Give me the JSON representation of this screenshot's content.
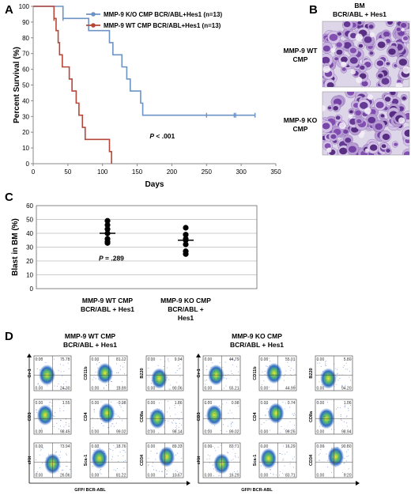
{
  "panels": {
    "A": "A",
    "B": "B",
    "C": "C",
    "D": "D"
  },
  "colors": {
    "ko": "#6d93c6",
    "wt": "#b5473a",
    "axis": "#888888"
  },
  "panel_b": {
    "title_line1": "BM",
    "title_line2": "BCR/ABL +  Hes1",
    "row_labels": [
      {
        "line1": "MMP-9 WT",
        "line2": "CMP"
      },
      {
        "line1": "MMP-9 KO",
        "line2": "CMP"
      }
    ]
  },
  "panel_d": {
    "xaxis_label": "GFP/ BCR-ABL",
    "groups": [
      {
        "title_line1": "MMP-9 WT CMP",
        "title_line2": "BCR/ABL +  Hes1",
        "plots": [
          {
            "marker": "Gr-1",
            "tl": "0.00",
            "tr": "75.78",
            "bl": "0.00",
            "br": "24.30"
          },
          {
            "marker": "CD11b",
            "tl": "0.00",
            "tr": "81.12",
            "bl": "0.00",
            "br": "18.89"
          },
          {
            "marker": "B220",
            "tl": "0.00",
            "tr": "9.94",
            "bl": "0.00",
            "br": "90.06"
          },
          {
            "marker": "CD3",
            "tl": "0.00",
            "tr": "1.55",
            "bl": "0.00",
            "br": "98.45"
          },
          {
            "marker": "CD4",
            "tl": "0.00",
            "tr": "0.98",
            "bl": "0.00",
            "br": "99.02"
          },
          {
            "marker": "CD8a",
            "tl": "0.00",
            "tr": "1.86",
            "bl": "0.00",
            "br": "98.14"
          },
          {
            "marker": "cKit",
            "tl": "0.00",
            "tr": "73.94",
            "bl": "0.00",
            "br": "26.06"
          },
          {
            "marker": "Sca-1",
            "tl": "0.00",
            "tr": "18.76",
            "bl": "0.00",
            "br": "81.22"
          },
          {
            "marker": "CD34",
            "tl": "0.00",
            "tr": "89.33",
            "bl": "0.00",
            "br": "10.67"
          }
        ]
      },
      {
        "title_line1": "MMP-9 KO CMP",
        "title_line2": "BCR/ABL +  Hes1",
        "plots": [
          {
            "marker": "Gr-1",
            "tl": "0.00",
            "tr": "44.79",
            "bl": "0.00",
            "br": "55.21"
          },
          {
            "marker": "CD11b",
            "tl": "0.00",
            "tr": "55.01",
            "bl": "0.00",
            "br": "44.99"
          },
          {
            "marker": "B220",
            "tl": "0.00",
            "tr": "5.80",
            "bl": "0.00",
            "br": "94.20"
          },
          {
            "marker": "CD3",
            "tl": "0.00",
            "tr": "0.98",
            "bl": "0.00",
            "br": "99.02"
          },
          {
            "marker": "CD4",
            "tl": "0.00",
            "tr": "0.74",
            "bl": "0.00",
            "br": "99.26"
          },
          {
            "marker": "CD8a",
            "tl": "0.00",
            "tr": "1.06",
            "bl": "0.00",
            "br": "98.94"
          },
          {
            "marker": "cKit",
            "tl": "0.00",
            "tr": "83.71",
            "bl": "0.00",
            "br": "16.29"
          },
          {
            "marker": "Sca-1",
            "tl": "0.00",
            "tr": "16.29",
            "bl": "0.00",
            "br": "83.71"
          },
          {
            "marker": "CD34",
            "tl": "0.00",
            "tr": "90.80",
            "bl": "0.00",
            "br": "9.20"
          }
        ]
      }
    ]
  },
  "chart_data": [
    {
      "type": "line",
      "subtype": "kaplan-meier",
      "xlabel": "Days",
      "ylabel": "Percent Survival (%)",
      "xlim": [
        0,
        350
      ],
      "ylim": [
        0,
        100
      ],
      "xticks": [
        0,
        50,
        100,
        150,
        200,
        250,
        300,
        350
      ],
      "yticks": [
        0,
        10,
        20,
        30,
        40,
        50,
        60,
        70,
        80,
        90,
        100
      ],
      "annotation": "P < .001",
      "legend_position": "top-right",
      "series": [
        {
          "name": "MMP-9 K/O CMP    BCR/ABL+Hes1  (n=13)",
          "color_key": "ko",
          "x": [
            0,
            30,
            43,
            80,
            110,
            115,
            128,
            135,
            140,
            155,
            158,
            175,
            250,
            290,
            292,
            320
          ],
          "y": [
            100,
            100,
            92.3,
            84.6,
            76.9,
            69.2,
            61.5,
            53.8,
            46.2,
            38.5,
            30.8,
            30.8,
            30.8,
            30.8,
            30.8,
            30.8
          ],
          "censored_x": [
            43,
            250,
            290,
            292,
            320
          ]
        },
        {
          "name": "MMP-9 WT CMP    BCR/ABL+Hes1  (n=13)",
          "color_key": "wt",
          "x": [
            0,
            30,
            33,
            36,
            38,
            42,
            52,
            56,
            62,
            66,
            71,
            75,
            110,
            113
          ],
          "y": [
            100,
            92.3,
            84.6,
            76.9,
            69.2,
            61.5,
            53.8,
            46.2,
            38.5,
            30.8,
            23.1,
            15.4,
            7.7,
            0
          ],
          "censored_x": [
            30
          ]
        }
      ]
    },
    {
      "type": "scatter",
      "subtype": "dot-plot",
      "ylabel": "Blast in BM (%)",
      "ylim": [
        0,
        60
      ],
      "yticks": [
        0,
        10,
        20,
        30,
        40,
        50,
        60
      ],
      "grid": true,
      "annotation": "P = .289",
      "categories": [
        "MMP-9 WT CMP\nBCR/ABL + Hes1",
        "MMP-9 KO CMP\nBCR/ABL +\nHes1"
      ],
      "category_lines": [
        [
          "MMP-9 WT CMP",
          "BCR/ABL + Hes1"
        ],
        [
          "MMP-9 KO CMP",
          "BCR/ABL +",
          "Hes1"
        ]
      ],
      "series": [
        {
          "category": 0,
          "values": [
            49,
            46,
            43,
            40,
            36,
            34,
            33
          ],
          "median": 40
        },
        {
          "category": 1,
          "values": [
            44,
            39,
            36,
            35,
            32,
            27,
            25
          ],
          "median": 35
        }
      ]
    }
  ]
}
